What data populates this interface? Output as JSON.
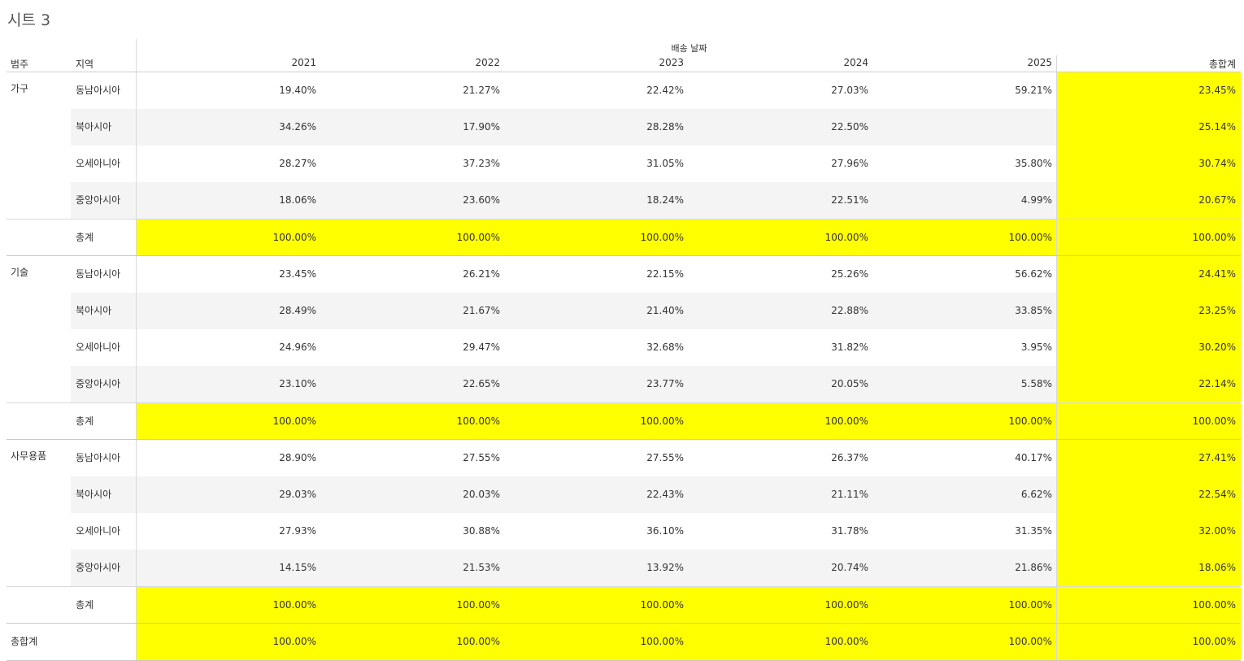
{
  "sheet_title": "시트 3",
  "header": {
    "column_group": "배송 날짜",
    "category_col": "범주",
    "region_col": "지역",
    "years": [
      "2021",
      "2022",
      "2023",
      "2024",
      "2025"
    ],
    "grand_total_col": "총합계"
  },
  "colors": {
    "highlight": "#ffff00",
    "band": "#f4f4f4"
  },
  "categories": [
    {
      "name": "가구",
      "rows": [
        {
          "region": "동남아시아",
          "values": [
            "19.40%",
            "21.27%",
            "22.42%",
            "27.03%",
            "59.21%"
          ],
          "total": "23.45%"
        },
        {
          "region": "북아시아",
          "values": [
            "34.26%",
            "17.90%",
            "28.28%",
            "22.50%",
            ""
          ],
          "total": "25.14%"
        },
        {
          "region": "오세아니아",
          "values": [
            "28.27%",
            "37.23%",
            "31.05%",
            "27.96%",
            "35.80%"
          ],
          "total": "30.74%"
        },
        {
          "region": "중앙아시아",
          "values": [
            "18.06%",
            "23.60%",
            "18.24%",
            "22.51%",
            "4.99%"
          ],
          "total": "20.67%"
        }
      ],
      "subtotal_label": "총계",
      "subtotal": [
        "100.00%",
        "100.00%",
        "100.00%",
        "100.00%",
        "100.00%"
      ],
      "subtotal_total": "100.00%"
    },
    {
      "name": "기술",
      "rows": [
        {
          "region": "동남아시아",
          "values": [
            "23.45%",
            "26.21%",
            "22.15%",
            "25.26%",
            "56.62%"
          ],
          "total": "24.41%"
        },
        {
          "region": "북아시아",
          "values": [
            "28.49%",
            "21.67%",
            "21.40%",
            "22.88%",
            "33.85%"
          ],
          "total": "23.25%"
        },
        {
          "region": "오세아니아",
          "values": [
            "24.96%",
            "29.47%",
            "32.68%",
            "31.82%",
            "3.95%"
          ],
          "total": "30.20%"
        },
        {
          "region": "중앙아시아",
          "values": [
            "23.10%",
            "22.65%",
            "23.77%",
            "20.05%",
            "5.58%"
          ],
          "total": "22.14%"
        }
      ],
      "subtotal_label": "총계",
      "subtotal": [
        "100.00%",
        "100.00%",
        "100.00%",
        "100.00%",
        "100.00%"
      ],
      "subtotal_total": "100.00%"
    },
    {
      "name": "사무용품",
      "rows": [
        {
          "region": "동남아시아",
          "values": [
            "28.90%",
            "27.55%",
            "27.55%",
            "26.37%",
            "40.17%"
          ],
          "total": "27.41%"
        },
        {
          "region": "북아시아",
          "values": [
            "29.03%",
            "20.03%",
            "22.43%",
            "21.11%",
            "6.62%"
          ],
          "total": "22.54%"
        },
        {
          "region": "오세아니아",
          "values": [
            "27.93%",
            "30.88%",
            "36.10%",
            "31.78%",
            "31.35%"
          ],
          "total": "32.00%"
        },
        {
          "region": "중앙아시아",
          "values": [
            "14.15%",
            "21.53%",
            "13.92%",
            "20.74%",
            "21.86%"
          ],
          "total": "18.06%"
        }
      ],
      "subtotal_label": "총계",
      "subtotal": [
        "100.00%",
        "100.00%",
        "100.00%",
        "100.00%",
        "100.00%"
      ],
      "subtotal_total": "100.00%"
    }
  ],
  "grand_total": {
    "label": "총합계",
    "values": [
      "100.00%",
      "100.00%",
      "100.00%",
      "100.00%",
      "100.00%"
    ],
    "total": "100.00%"
  }
}
